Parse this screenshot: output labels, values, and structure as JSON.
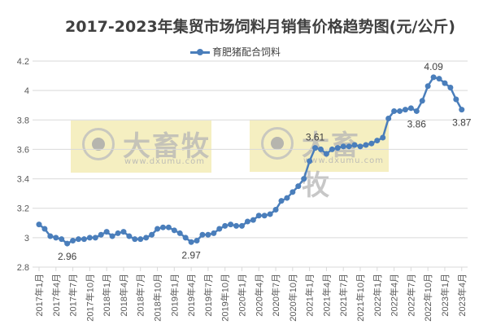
{
  "chart_data": {
    "type": "line",
    "title": "2017-2023年集贸市场饲料月销售价格趋势图(元/公斤)",
    "xlabel": "",
    "ylabel": "",
    "ylim": [
      2.8,
      4.2
    ],
    "yticks": [
      "2.8",
      "3",
      "3.2",
      "3.4",
      "3.6",
      "3.8",
      "4",
      "4.2"
    ],
    "grid": true,
    "legend_position": "top",
    "x_tick_labels": [
      "2017年1月",
      "2017年4月",
      "2017年7月",
      "2017年10月",
      "2018年1月",
      "2018年4月",
      "2018年7月",
      "2018年10月",
      "2019年1月",
      "2019年4月",
      "2019年7月",
      "2019年10月",
      "2020年1月",
      "2020年4月",
      "2020年7月",
      "2020年10月",
      "2021年1月",
      "2021年4月",
      "2021年7月",
      "2021年10月",
      "2022年1月",
      "2022年4月",
      "2022年7月",
      "2022年10月",
      "2023年1月",
      "2023年4月"
    ],
    "series": [
      {
        "name": "育肥猪配合饲料",
        "color": "#4a7ebb",
        "values": [
          3.09,
          3.06,
          3.01,
          3.0,
          2.99,
          2.96,
          2.98,
          2.99,
          2.99,
          3.0,
          3.0,
          3.02,
          3.04,
          3.01,
          3.03,
          3.04,
          3.01,
          2.99,
          2.99,
          3.0,
          3.02,
          3.06,
          3.07,
          3.07,
          3.05,
          3.03,
          3.0,
          2.97,
          2.98,
          3.02,
          3.02,
          3.03,
          3.06,
          3.08,
          3.09,
          3.08,
          3.08,
          3.11,
          3.12,
          3.15,
          3.15,
          3.16,
          3.19,
          3.25,
          3.27,
          3.31,
          3.35,
          3.4,
          3.52,
          3.61,
          3.6,
          3.57,
          3.6,
          3.61,
          3.62,
          3.62,
          3.63,
          3.62,
          3.63,
          3.64,
          3.66,
          3.68,
          3.81,
          3.86,
          3.86,
          3.87,
          3.88,
          3.86,
          3.93,
          4.03,
          4.09,
          4.08,
          4.05,
          4.02,
          3.94,
          3.87
        ]
      }
    ],
    "annotations": [
      {
        "index": 5,
        "text": "2.96",
        "pos": "below"
      },
      {
        "index": 27,
        "text": "2.97",
        "pos": "below"
      },
      {
        "index": 49,
        "text": "3.61",
        "pos": "above"
      },
      {
        "index": 67,
        "text": "3.86",
        "pos": "below"
      },
      {
        "index": 70,
        "text": "4.09",
        "pos": "above"
      },
      {
        "index": 75,
        "text": "3.87",
        "pos": "below"
      }
    ]
  },
  "watermark": {
    "brand": "大畜牧",
    "url": "www.dxumu.com"
  }
}
